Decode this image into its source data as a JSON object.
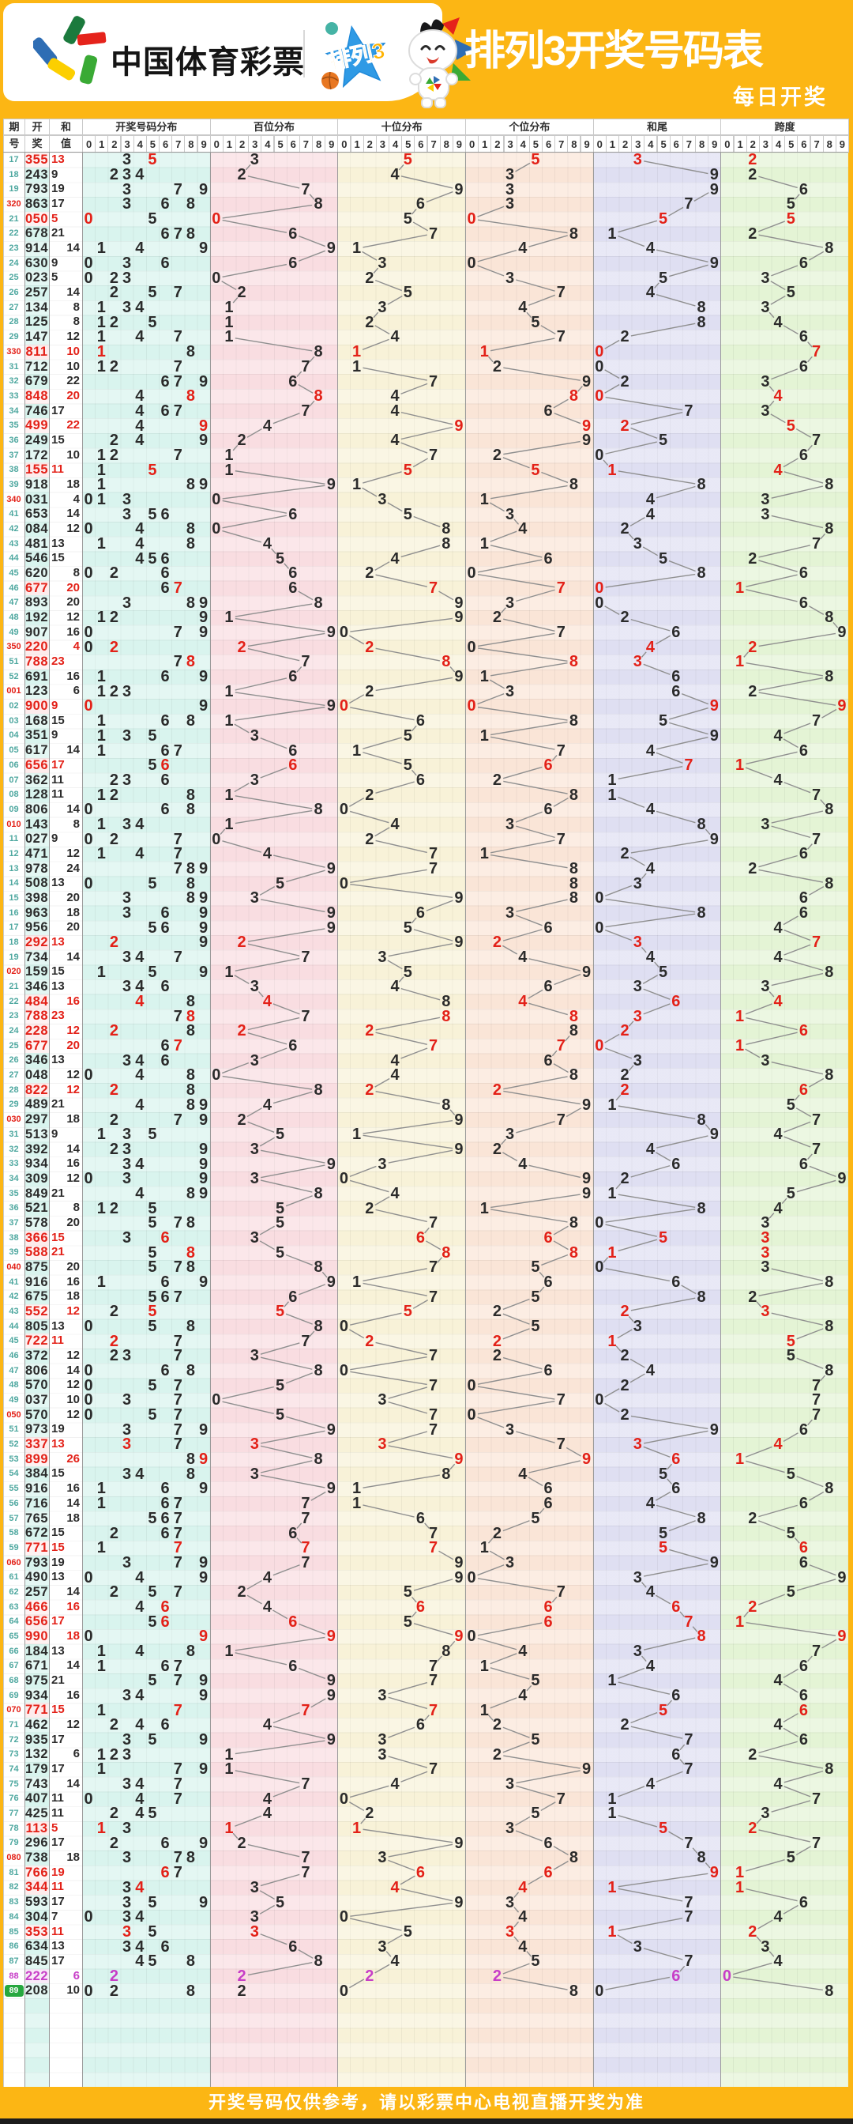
{
  "banner": {
    "logo_text": "中国体育彩票",
    "badge_text": "排列3",
    "title": "排列3开奖号码表",
    "subtitle": "每日开奖",
    "colors": {
      "banner_bg": "#fcb614",
      "title_color": "#ffffff"
    }
  },
  "table": {
    "left_headers": [
      {
        "line1": "期",
        "line2": "号"
      },
      {
        "line1": "开",
        "line2": "奖"
      },
      {
        "line1": "和",
        "line2": "值"
      }
    ],
    "digit_headers": [
      "0",
      "1",
      "2",
      "3",
      "4",
      "5",
      "6",
      "7",
      "8",
      "9"
    ],
    "groups": [
      {
        "name": "开奖号码分布",
        "bg": "#d9f4ee",
        "kind": "digits"
      },
      {
        "name": "百位分布",
        "bg": "#f9dde1",
        "kind": "hundreds"
      },
      {
        "name": "十位分布",
        "bg": "#f8f2d8",
        "kind": "tens"
      },
      {
        "name": "个位分布",
        "bg": "#fae5d7",
        "kind": "units"
      },
      {
        "name": "和尾",
        "bg": "#dfdff2",
        "kind": "sum_tail"
      },
      {
        "name": "跨度",
        "bg": "#e4f4d5",
        "kind": "span"
      }
    ],
    "colors": {
      "normal_text": "#2b2b2b",
      "pair_text": "#e32118",
      "triple_text": "#c73ec7",
      "period_normal": "#4fa8a0",
      "period_decade": "#e32118",
      "current_badge_bg": "#27a83f",
      "trend_line": "#8f8f8f",
      "draw_cell_normal_bg": "#d9f4ee",
      "draw_cell_pair_bg": "#fdecec",
      "draw_cell_triple_bg": "#f8e9f8"
    }
  },
  "chart_data": {
    "type": "table",
    "title": "排列3开奖号码表",
    "columns": [
      "期号",
      "开奖",
      "和值"
    ],
    "mark_columns": [
      "开奖号码分布(三位数字)",
      "百位分布(第1位)",
      "十位分布(第2位)",
      "个位分布(第3位)",
      "和尾(和值个位)",
      "跨度(最大-最小)"
    ],
    "row_format": [
      "period_label",
      "period_style(n=normal,d=decade-red,t=triple-magenta,c=current-green)",
      "draw_number",
      "sum"
    ],
    "empty_trailing_rows": 6,
    "rows": [
      [
        "17",
        "n",
        "355",
        13
      ],
      [
        "18",
        "n",
        "243",
        9
      ],
      [
        "19",
        "n",
        "793",
        19
      ],
      [
        "320",
        "d",
        "863",
        17
      ],
      [
        "21",
        "n",
        "050",
        5
      ],
      [
        "22",
        "n",
        "678",
        21
      ],
      [
        "23",
        "n",
        "914",
        14
      ],
      [
        "24",
        "n",
        "630",
        9
      ],
      [
        "25",
        "n",
        "023",
        5
      ],
      [
        "26",
        "n",
        "257",
        14
      ],
      [
        "27",
        "n",
        "134",
        8
      ],
      [
        "28",
        "n",
        "125",
        8
      ],
      [
        "29",
        "n",
        "147",
        12
      ],
      [
        "330",
        "d",
        "811",
        10
      ],
      [
        "31",
        "n",
        "712",
        10
      ],
      [
        "32",
        "n",
        "679",
        22
      ],
      [
        "33",
        "n",
        "848",
        20
      ],
      [
        "34",
        "n",
        "746",
        17
      ],
      [
        "35",
        "n",
        "499",
        22
      ],
      [
        "36",
        "n",
        "249",
        15
      ],
      [
        "37",
        "n",
        "172",
        10
      ],
      [
        "38",
        "n",
        "155",
        11
      ],
      [
        "39",
        "n",
        "918",
        18
      ],
      [
        "340",
        "d",
        "031",
        4
      ],
      [
        "41",
        "n",
        "653",
        14
      ],
      [
        "42",
        "n",
        "084",
        12
      ],
      [
        "43",
        "n",
        "481",
        13
      ],
      [
        "44",
        "n",
        "546",
        15
      ],
      [
        "45",
        "n",
        "620",
        8
      ],
      [
        "46",
        "n",
        "677",
        20
      ],
      [
        "47",
        "n",
        "893",
        20
      ],
      [
        "48",
        "n",
        "192",
        12
      ],
      [
        "49",
        "n",
        "907",
        16
      ],
      [
        "350",
        "d",
        "220",
        4
      ],
      [
        "51",
        "n",
        "788",
        23
      ],
      [
        "52",
        "n",
        "691",
        16
      ],
      [
        "001",
        "d",
        "123",
        6
      ],
      [
        "02",
        "n",
        "900",
        9
      ],
      [
        "03",
        "n",
        "168",
        15
      ],
      [
        "04",
        "n",
        "351",
        9
      ],
      [
        "05",
        "n",
        "617",
        14
      ],
      [
        "06",
        "n",
        "656",
        17
      ],
      [
        "07",
        "n",
        "362",
        11
      ],
      [
        "08",
        "n",
        "128",
        11
      ],
      [
        "09",
        "n",
        "806",
        14
      ],
      [
        "010",
        "d",
        "143",
        8
      ],
      [
        "11",
        "n",
        "027",
        9
      ],
      [
        "12",
        "n",
        "471",
        12
      ],
      [
        "13",
        "n",
        "978",
        24
      ],
      [
        "14",
        "n",
        "508",
        13
      ],
      [
        "15",
        "n",
        "398",
        20
      ],
      [
        "16",
        "n",
        "963",
        18
      ],
      [
        "17",
        "n",
        "956",
        20
      ],
      [
        "18",
        "n",
        "292",
        13
      ],
      [
        "19",
        "n",
        "734",
        14
      ],
      [
        "020",
        "d",
        "159",
        15
      ],
      [
        "21",
        "n",
        "346",
        13
      ],
      [
        "22",
        "n",
        "484",
        16
      ],
      [
        "23",
        "n",
        "788",
        23
      ],
      [
        "24",
        "n",
        "228",
        12
      ],
      [
        "25",
        "n",
        "677",
        20
      ],
      [
        "26",
        "n",
        "346",
        13
      ],
      [
        "27",
        "n",
        "048",
        12
      ],
      [
        "28",
        "n",
        "822",
        12
      ],
      [
        "29",
        "n",
        "489",
        21
      ],
      [
        "030",
        "d",
        "297",
        18
      ],
      [
        "31",
        "n",
        "513",
        9
      ],
      [
        "32",
        "n",
        "392",
        14
      ],
      [
        "33",
        "n",
        "934",
        16
      ],
      [
        "34",
        "n",
        "309",
        12
      ],
      [
        "35",
        "n",
        "849",
        21
      ],
      [
        "36",
        "n",
        "521",
        8
      ],
      [
        "37",
        "n",
        "578",
        20
      ],
      [
        "38",
        "n",
        "366",
        15
      ],
      [
        "39",
        "n",
        "588",
        21
      ],
      [
        "040",
        "d",
        "875",
        20
      ],
      [
        "41",
        "n",
        "916",
        16
      ],
      [
        "42",
        "n",
        "675",
        18
      ],
      [
        "43",
        "n",
        "552",
        12
      ],
      [
        "44",
        "n",
        "805",
        13
      ],
      [
        "45",
        "n",
        "722",
        11
      ],
      [
        "46",
        "n",
        "372",
        12
      ],
      [
        "47",
        "n",
        "806",
        14
      ],
      [
        "48",
        "n",
        "570",
        12
      ],
      [
        "49",
        "n",
        "037",
        10
      ],
      [
        "050",
        "d",
        "570",
        12
      ],
      [
        "51",
        "n",
        "973",
        19
      ],
      [
        "52",
        "n",
        "337",
        13
      ],
      [
        "53",
        "n",
        "899",
        26
      ],
      [
        "54",
        "n",
        "384",
        15
      ],
      [
        "55",
        "n",
        "916",
        16
      ],
      [
        "56",
        "n",
        "716",
        14
      ],
      [
        "57",
        "n",
        "765",
        18
      ],
      [
        "58",
        "n",
        "672",
        15
      ],
      [
        "59",
        "n",
        "771",
        15
      ],
      [
        "060",
        "d",
        "793",
        19
      ],
      [
        "61",
        "n",
        "490",
        13
      ],
      [
        "62",
        "n",
        "257",
        14
      ],
      [
        "63",
        "n",
        "466",
        16
      ],
      [
        "64",
        "n",
        "656",
        17
      ],
      [
        "65",
        "n",
        "990",
        18
      ],
      [
        "66",
        "n",
        "184",
        13
      ],
      [
        "67",
        "n",
        "671",
        14
      ],
      [
        "68",
        "n",
        "975",
        21
      ],
      [
        "69",
        "n",
        "934",
        16
      ],
      [
        "070",
        "d",
        "771",
        15
      ],
      [
        "71",
        "n",
        "462",
        12
      ],
      [
        "72",
        "n",
        "935",
        17
      ],
      [
        "73",
        "n",
        "132",
        6
      ],
      [
        "74",
        "n",
        "179",
        17
      ],
      [
        "75",
        "n",
        "743",
        14
      ],
      [
        "76",
        "n",
        "407",
        11
      ],
      [
        "77",
        "n",
        "425",
        11
      ],
      [
        "78",
        "n",
        "113",
        5
      ],
      [
        "79",
        "n",
        "296",
        17
      ],
      [
        "080",
        "d",
        "738",
        18
      ],
      [
        "81",
        "n",
        "766",
        19
      ],
      [
        "82",
        "n",
        "344",
        11
      ],
      [
        "83",
        "n",
        "593",
        17
      ],
      [
        "84",
        "n",
        "304",
        7
      ],
      [
        "85",
        "n",
        "353",
        11
      ],
      [
        "86",
        "n",
        "634",
        13
      ],
      [
        "87",
        "n",
        "845",
        17
      ],
      [
        "88",
        "t",
        "222",
        6
      ],
      [
        "89",
        "c",
        "208",
        10
      ]
    ]
  },
  "footer": {
    "text": "开奖号码仅供参考，请以彩票中心电视直播开奖为准"
  }
}
